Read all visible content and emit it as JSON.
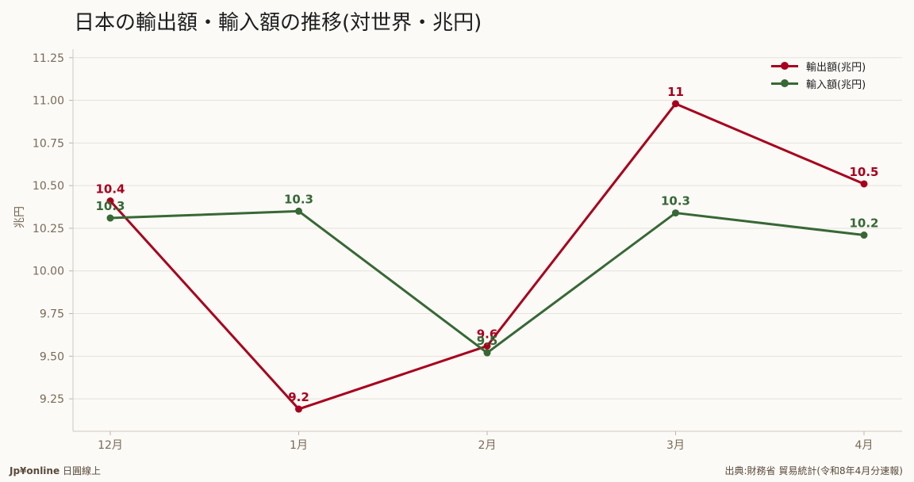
{
  "chart_data": {
    "type": "line",
    "title": "日本の輸出額・輸入額の推移(対世界・兆円)",
    "ylabel": "兆円",
    "categories": [
      "12月",
      "1月",
      "2月",
      "3月",
      "4月"
    ],
    "y_ticks": [
      "9.25",
      "9.50",
      "9.75",
      "10.00",
      "10.25",
      "10.50",
      "10.75",
      "11.00",
      "11.25"
    ],
    "ylim": [
      9.06,
      11.3
    ],
    "grid": true,
    "legend_position": "top-right",
    "series": [
      {
        "name": "輸出額(兆円)",
        "color": "#a8001c",
        "values": [
          10.41,
          9.19,
          9.56,
          10.98,
          10.51
        ],
        "labels": [
          "10.4",
          "9.2",
          "9.6",
          "11",
          "10.5"
        ]
      },
      {
        "name": "輸入額(兆円)",
        "color": "#376835",
        "values": [
          10.31,
          10.35,
          9.52,
          10.34,
          10.21
        ],
        "labels": [
          "10.3",
          "10.3",
          "9.5",
          "10.3",
          "10.2"
        ]
      }
    ]
  },
  "footer": {
    "brand": "Jp¥online",
    "brand_sub": "日圓線上",
    "source": "出典:財務省 貿易統計(令和8年4月分速報)"
  }
}
